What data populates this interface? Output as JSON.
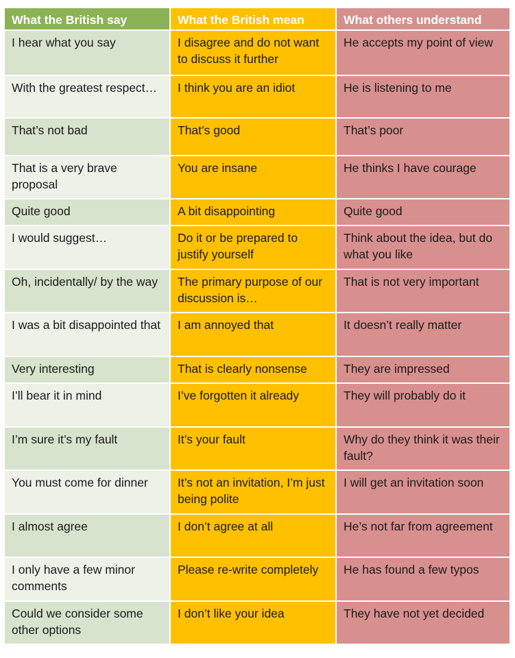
{
  "colors": {
    "header_british_say": "#8bb255",
    "header_british_mean": "#ffc000",
    "header_others_understand": "#d58f8f",
    "col1_light": "#d7e3cc",
    "col1_lighter": "#edf1e8",
    "col2": "#ffc000",
    "col3": "#d8908f"
  },
  "table": {
    "headers": [
      "What the British say",
      "What the British mean",
      "What others understand"
    ],
    "rows": [
      [
        "I hear what you say",
        "I disagree and do not want to discuss it further",
        "He accepts my point of view"
      ],
      [
        "With the greatest respect…",
        "I think you are an idiot",
        "He is listening to me"
      ],
      [
        "That’s not bad",
        "That’s good",
        "That’s poor"
      ],
      [
        "That is a very brave proposal",
        "You are insane",
        "He thinks I have courage"
      ],
      [
        "Quite good",
        "A bit disappointing",
        "Quite good"
      ],
      [
        "I would suggest…",
        "Do it or be prepared to justify yourself",
        "Think about the idea, but do what you like"
      ],
      [
        "Oh, incidentally/ by the way",
        "The primary purpose of our discussion is…",
        "That is not very important"
      ],
      [
        "I was a bit disappointed that",
        "I am annoyed that",
        "It doesn’t really matter"
      ],
      [
        "Very interesting",
        "That is clearly nonsense",
        "They are impressed"
      ],
      [
        "I’ll bear it in mind",
        "I’ve forgotten it already",
        "They will probably do it"
      ],
      [
        "I’m sure it’s my fault",
        "It’s your fault",
        "Why do they think it was their fault?"
      ],
      [
        "You must come for dinner",
        "It’s not an invitation, I’m just being polite",
        "I will get an invitation soon"
      ],
      [
        "I almost agree",
        "I don’t agree at all",
        "He’s not far from agreement"
      ],
      [
        "I only have a few minor comments",
        "Please re-write completely",
        "He has found a few typos"
      ],
      [
        "Could we consider some other options",
        "I don’t like your idea",
        "They have not yet decided"
      ]
    ]
  }
}
